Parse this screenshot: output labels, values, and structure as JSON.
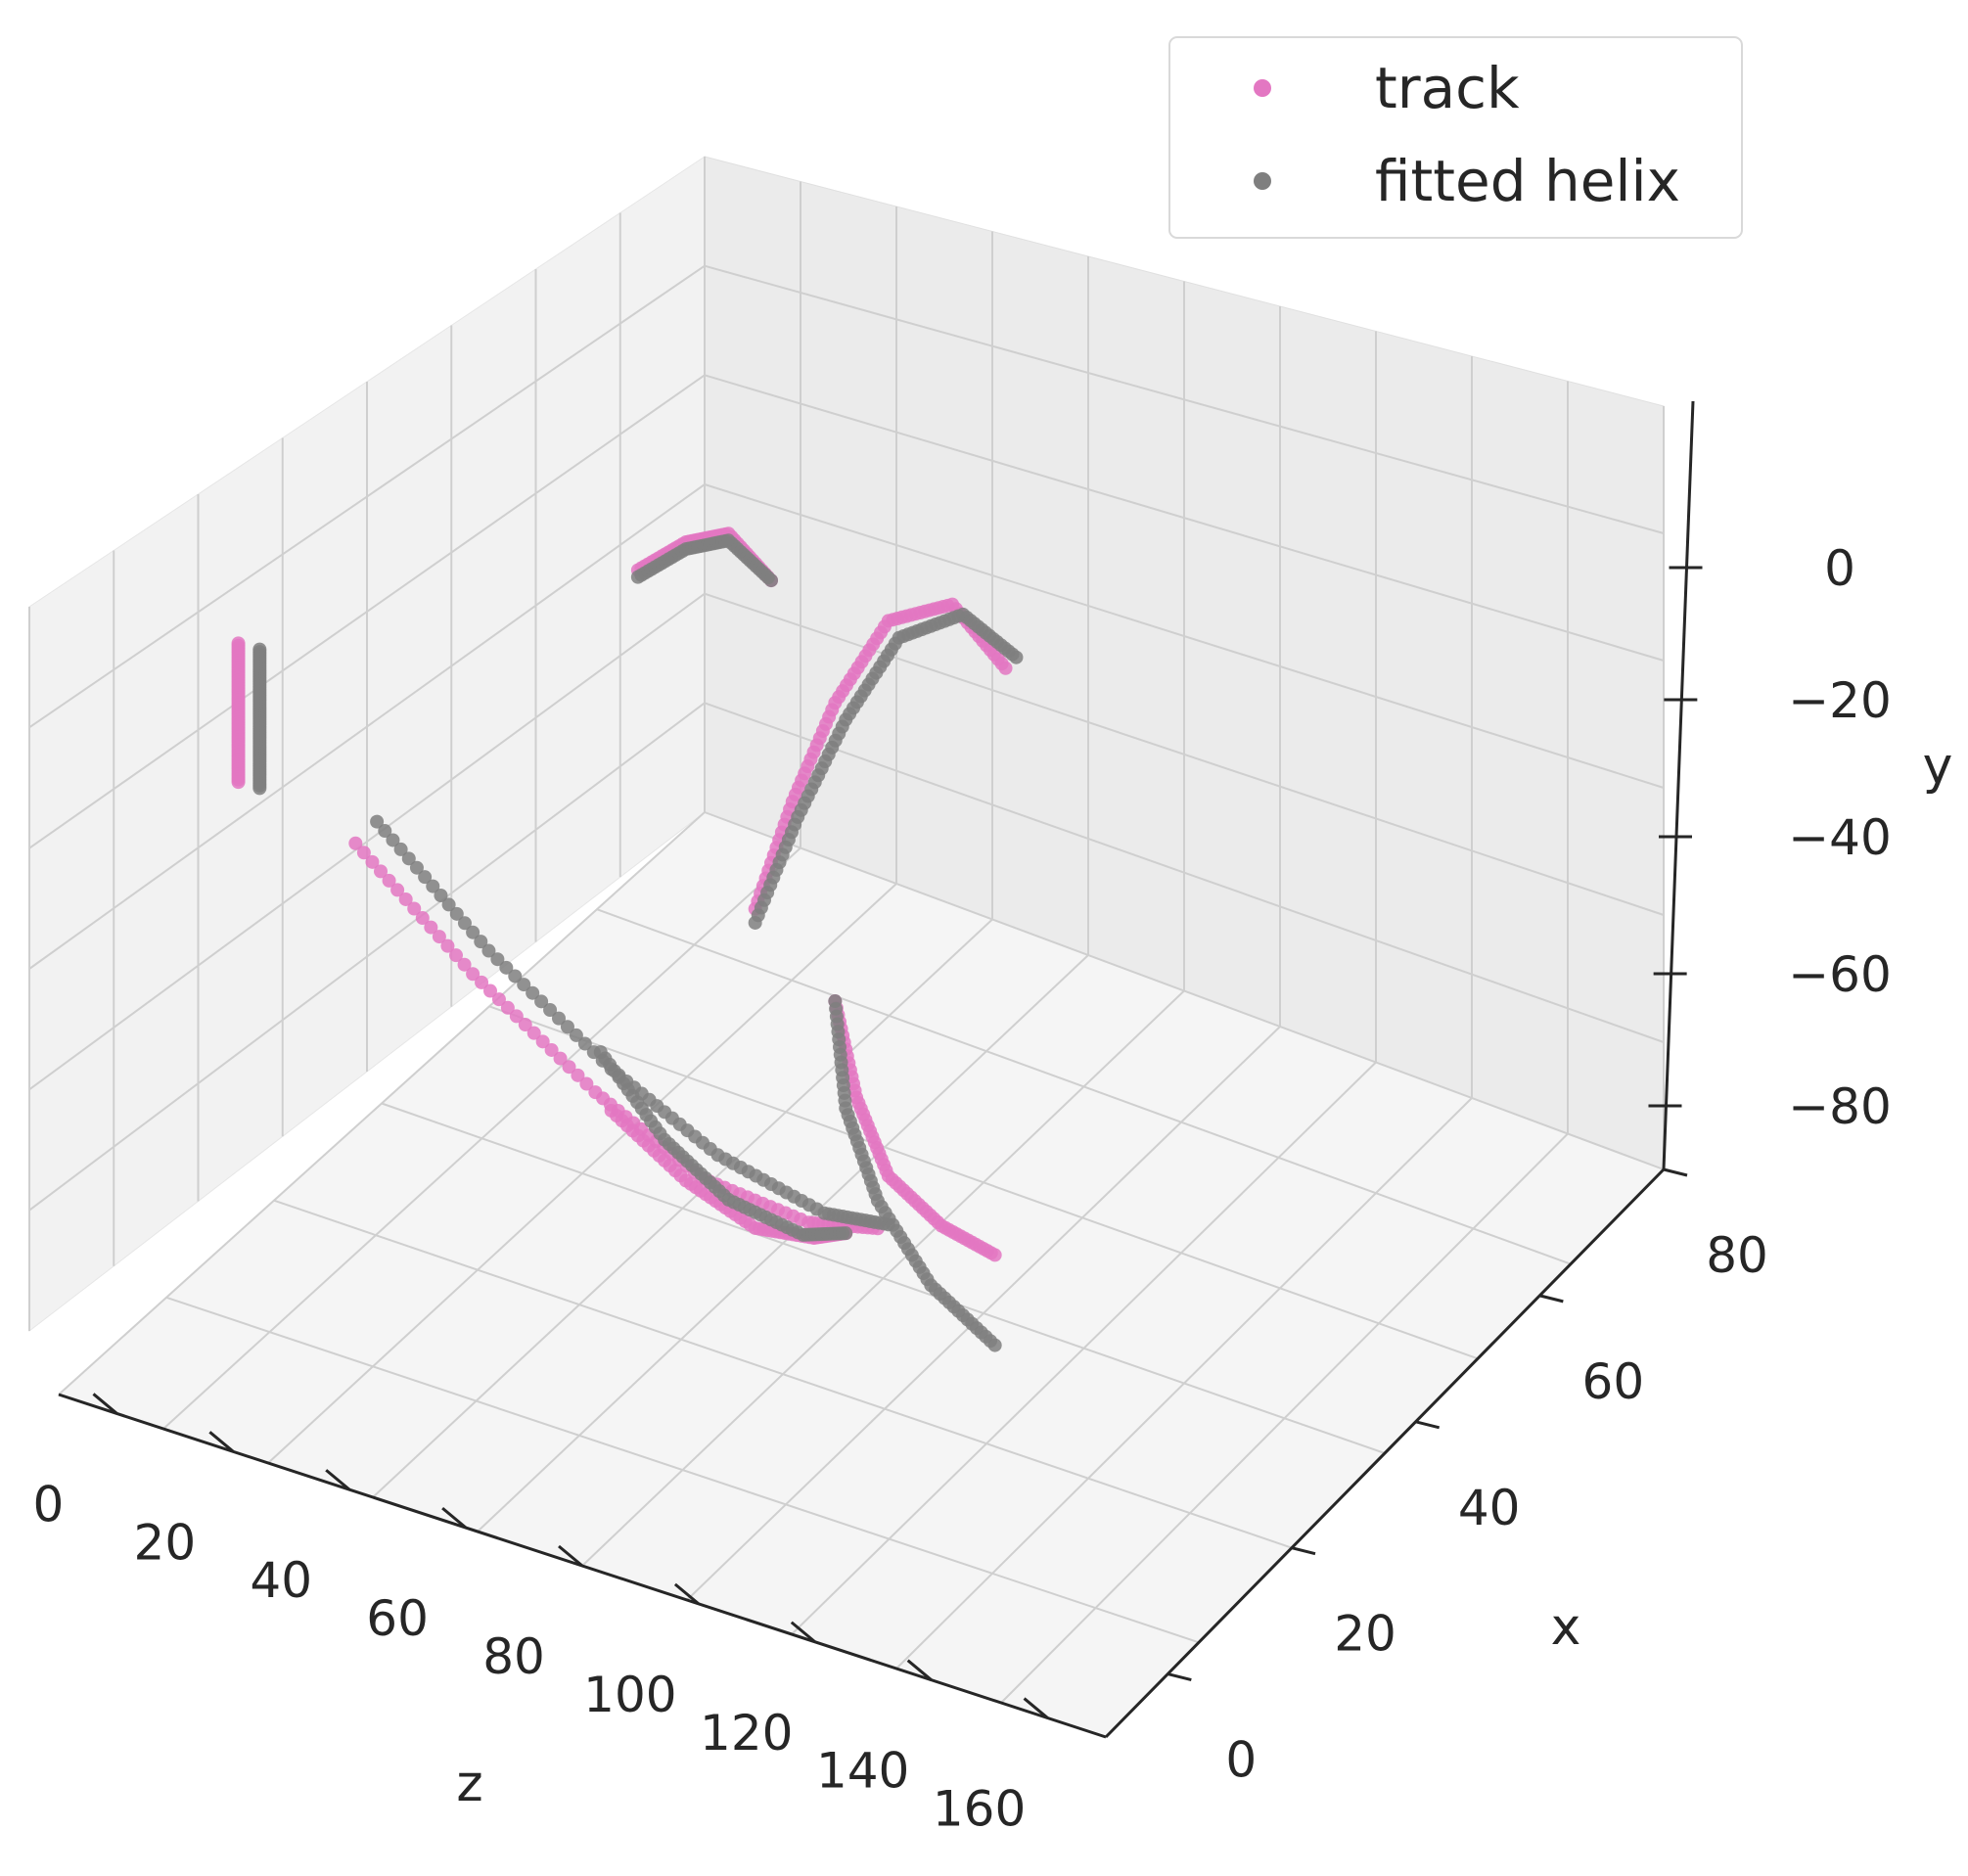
{
  "chart_data": {
    "type": "scatter",
    "projection": "3d",
    "grid": true,
    "legend_position": "top-right",
    "x_axis": {
      "label": "z",
      "ticks": [
        "0",
        "20",
        "40",
        "60",
        "80",
        "100",
        "120",
        "140",
        "160"
      ]
    },
    "y_axis": {
      "label": "x",
      "ticks": [
        "0",
        "20",
        "40",
        "60",
        "80"
      ]
    },
    "z_axis": {
      "label": "y",
      "ticks": [
        "0",
        "−20",
        "−40",
        "−60",
        "−80"
      ]
    },
    "series": [
      {
        "name": "track",
        "color": "#e377c2",
        "arcs": [
          [
            [
              30,
              -52
            ],
            [
              52,
              -66
            ],
            [
              75,
              -78
            ],
            [
              95,
              -86
            ],
            [
              115,
              -88
            ],
            [
              128,
              -86
            ]
          ],
          [
            [
              78,
              -80
            ],
            [
              92,
              -87
            ],
            [
              105,
              -91
            ],
            [
              116,
              -90
            ],
            [
              122,
              -88
            ]
          ],
          [
            [
              120,
              -55
            ],
            [
              124,
              -68
            ],
            [
              130,
              -78
            ],
            [
              140,
              -83
            ],
            [
              150,
              -85
            ]
          ],
          [
            [
              83,
              -1
            ],
            [
              92,
              5
            ],
            [
              100,
              8
            ],
            [
              108,
              3
            ]
          ],
          [
            [
              105,
              -45
            ],
            [
              112,
              -28
            ],
            [
              120,
              -12
            ],
            [
              130,
              2
            ],
            [
              142,
              7
            ],
            [
              152,
              0
            ]
          ],
          [
            [
              8,
              -28
            ],
            [
              8,
              -33
            ],
            [
              8,
              -38
            ],
            [
              8,
              -43
            ],
            [
              8,
              -48
            ]
          ]
        ]
      },
      {
        "name": "fitted helix",
        "color": "#7f7f7f",
        "arcs": [
          [
            [
              34,
              -48
            ],
            [
              55,
              -62
            ],
            [
              78,
              -74
            ],
            [
              98,
              -82
            ],
            [
              118,
              -86
            ],
            [
              130,
              -85
            ]
          ],
          [
            [
              76,
              -72
            ],
            [
              88,
              -82
            ],
            [
              100,
              -88
            ],
            [
              114,
              -90
            ],
            [
              122,
              -88
            ]
          ],
          [
            [
              120,
              -55
            ],
            [
              122,
              -70
            ],
            [
              128,
              -82
            ],
            [
              138,
              -92
            ],
            [
              150,
              -98
            ]
          ],
          [
            [
              83,
              -2
            ],
            [
              92,
              4
            ],
            [
              100,
              7
            ],
            [
              108,
              3
            ]
          ],
          [
            [
              105,
              -47
            ],
            [
              113,
              -30
            ],
            [
              122,
              -14
            ],
            [
              132,
              0
            ],
            [
              144,
              6
            ],
            [
              154,
              2
            ]
          ],
          [
            [
              12,
              -28
            ],
            [
              12,
              -33
            ],
            [
              12,
              -38
            ],
            [
              12,
              -43
            ],
            [
              12,
              -48
            ]
          ]
        ]
      }
    ]
  }
}
